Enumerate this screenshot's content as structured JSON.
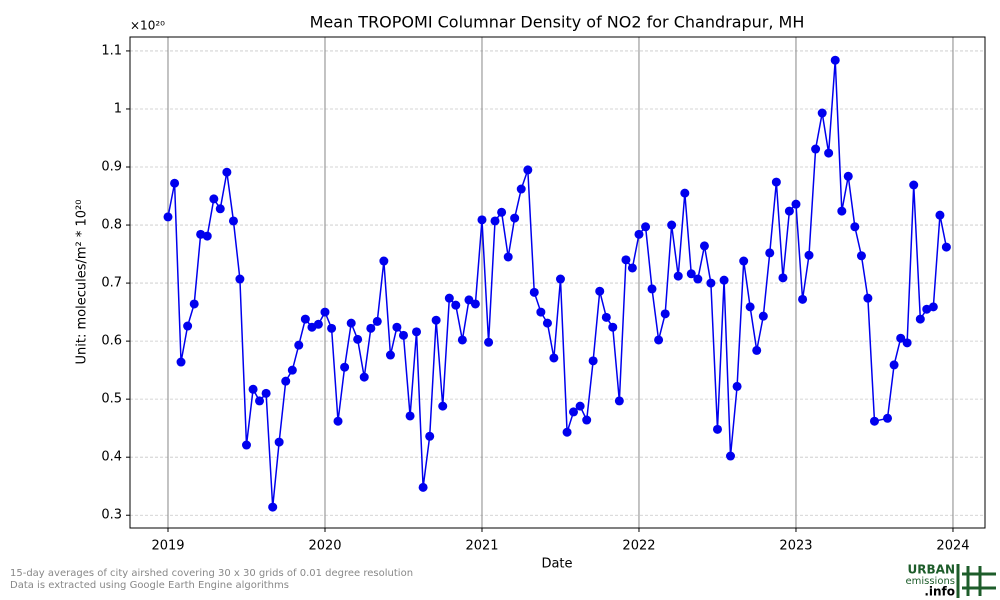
{
  "chart_data": {
    "type": "line",
    "title": "Mean TROPOMI Columnar Density of NO2 for Chandrapur, MH",
    "x_label": "Date",
    "y_label": "Unit: molecules/m² * 10²⁰",
    "y_offset_label": "×10²⁰",
    "footnotes": [
      "15-day averages of city airshed covering 30 x 30 grids of 0.01 degree resolution",
      "Data is extracted using Google Earth Engine algorithms"
    ],
    "logo": {
      "line1": "URBAN",
      "line2": "emissions",
      "line3": ".info"
    },
    "xlim": [
      2018.758,
      2024.204
    ],
    "ylim": [
      0.278,
      1.124
    ],
    "xticks": [
      2019,
      2020,
      2021,
      2022,
      2023,
      2024
    ],
    "yticks": [
      0.3,
      0.4,
      0.5,
      0.6,
      0.7,
      0.8,
      0.9,
      1.0,
      1.1
    ],
    "grid": true,
    "series": [
      {
        "name": "NO2",
        "color": "#0000ee",
        "x": [
          2019,
          2019.042,
          2019.083,
          2019.125,
          2019.167,
          2019.208,
          2019.25,
          2019.292,
          2019.333,
          2019.375,
          2019.417,
          2019.458,
          2019.5,
          2019.542,
          2019.583,
          2019.625,
          2019.667,
          2019.708,
          2019.75,
          2019.792,
          2019.833,
          2019.875,
          2019.917,
          2019.958,
          2020,
          2020.042,
          2020.083,
          2020.125,
          2020.167,
          2020.208,
          2020.25,
          2020.292,
          2020.333,
          2020.375,
          2020.417,
          2020.458,
          2020.5,
          2020.542,
          2020.583,
          2020.625,
          2020.667,
          2020.708,
          2020.75,
          2020.792,
          2020.833,
          2020.875,
          2020.917,
          2020.958,
          2021,
          2021.042,
          2021.083,
          2021.125,
          2021.167,
          2021.208,
          2021.25,
          2021.292,
          2021.333,
          2021.375,
          2021.417,
          2021.458,
          2021.5,
          2021.542,
          2021.583,
          2021.625,
          2021.667,
          2021.708,
          2021.75,
          2021.792,
          2021.833,
          2021.875,
          2021.917,
          2021.958,
          2022,
          2022.042,
          2022.083,
          2022.125,
          2022.167,
          2022.208,
          2022.25,
          2022.292,
          2022.333,
          2022.375,
          2022.417,
          2022.458,
          2022.5,
          2022.542,
          2022.583,
          2022.625,
          2022.667,
          2022.708,
          2022.75,
          2022.792,
          2022.833,
          2022.875,
          2022.917,
          2022.958,
          2023,
          2023.042,
          2023.083,
          2023.125,
          2023.167,
          2023.208,
          2023.25,
          2023.292,
          2023.333,
          2023.375,
          2023.417,
          2023.458,
          2023.5,
          2023.583,
          2023.625,
          2023.667,
          2023.708,
          2023.75,
          2023.792,
          2023.833,
          2023.875,
          2023.917,
          2023.958
        ],
        "values": [
          0.814,
          0.872,
          0.564,
          0.626,
          0.664,
          0.784,
          0.781,
          0.845,
          0.828,
          0.891,
          0.807,
          0.707,
          0.421,
          0.517,
          0.497,
          0.51,
          0.314,
          0.426,
          0.531,
          0.55,
          0.593,
          0.638,
          0.624,
          0.629,
          0.65,
          0.622,
          0.462,
          0.555,
          0.631,
          0.603,
          0.538,
          0.622,
          0.634,
          0.738,
          0.576,
          0.624,
          0.61,
          0.471,
          0.616,
          0.348,
          0.436,
          0.636,
          0.488,
          0.674,
          0.662,
          0.602,
          0.671,
          0.664,
          0.809,
          0.598,
          0.807,
          0.822,
          0.745,
          0.812,
          0.862,
          0.895,
          0.684,
          0.65,
          0.631,
          0.571,
          0.707,
          0.443,
          0.478,
          0.488,
          0.464,
          0.566,
          0.686,
          0.641,
          0.624,
          0.497,
          0.74,
          0.726,
          0.784,
          0.797,
          0.69,
          0.602,
          0.647,
          0.8,
          0.712,
          0.855,
          0.716,
          0.707,
          0.764,
          0.7,
          0.448,
          0.705,
          0.402,
          0.522,
          0.738,
          0.659,
          0.584,
          0.643,
          0.752,
          0.874,
          0.709,
          0.824,
          0.836,
          0.672,
          0.748,
          0.931,
          0.993,
          0.924,
          1.084,
          0.824,
          0.884,
          0.797,
          0.747,
          0.674,
          0.462,
          0.467,
          0.559,
          0.605,
          0.597,
          0.869,
          0.638,
          0.655,
          0.659,
          0.817,
          0.762
        ]
      }
    ]
  }
}
